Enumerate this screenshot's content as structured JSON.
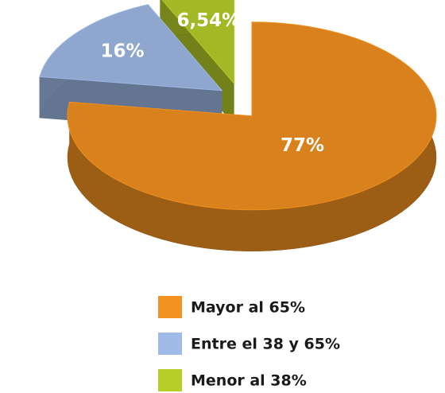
{
  "chart_data": {
    "type": "pie",
    "categories": [
      "Mayor al 65%",
      "Entre el 38 y 65%",
      "Menor al 38%"
    ],
    "values": [
      77,
      16,
      6.54
    ],
    "value_labels": [
      "77%",
      "16%",
      "6,54%"
    ],
    "colors": [
      "#d9821d",
      "#8fa7cf",
      "#a3b825"
    ],
    "legend": "bottom"
  }
}
